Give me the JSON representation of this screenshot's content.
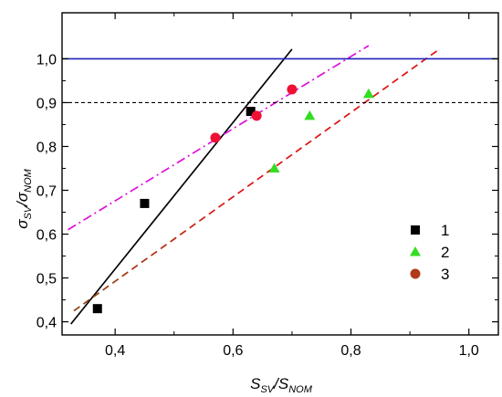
{
  "chart_data": {
    "type": "scatter",
    "xlim": [
      0.31,
      1.05
    ],
    "ylim": [
      0.37,
      1.105
    ],
    "x_ticks": [
      0.4,
      0.6,
      0.8,
      1.0
    ],
    "x_tick_labels": [
      "0,4",
      "0,6",
      "0,8",
      "1,0"
    ],
    "y_ticks": [
      0.4,
      0.5,
      0.6,
      0.7,
      0.8,
      0.9,
      1.0
    ],
    "y_tick_labels": [
      "0,4",
      "0,5",
      "0,6",
      "0,7",
      "0,8",
      "0,9",
      "1,0"
    ],
    "xlabel": {
      "main": "S",
      "sub1": "SV",
      "slash": "/S",
      "sub2": "NOM"
    },
    "ylabel": {
      "main": "σ",
      "sub1": "SV",
      "slash": "/σ",
      "sub2": "NOM"
    },
    "grid": false,
    "legend_position": "bottom-right",
    "series": [
      {
        "name": "1",
        "marker": "square",
        "color": "#000000",
        "points": [
          [
            0.37,
            0.43
          ],
          [
            0.45,
            0.67
          ],
          [
            0.63,
            0.88
          ]
        ],
        "fit": {
          "x": [
            0.325,
            0.7
          ],
          "y": [
            0.395,
            1.022
          ],
          "color": "#000000",
          "dash": "none"
        }
      },
      {
        "name": "2",
        "marker": "triangle",
        "color": "#33dd22",
        "points": [
          [
            0.67,
            0.75
          ],
          [
            0.73,
            0.87
          ],
          [
            0.83,
            0.92
          ]
        ],
        "fit": {
          "x": [
            0.33,
            0.95
          ],
          "y": [
            0.425,
            1.022
          ],
          "color": "#dd1111",
          "dash": "8,5"
        }
      },
      {
        "name": "3",
        "marker": "circle",
        "color": "#ee1133",
        "points": [
          [
            0.57,
            0.82
          ],
          [
            0.64,
            0.87
          ],
          [
            0.7,
            0.93
          ]
        ],
        "fit": {
          "x": [
            0.32,
            0.83
          ],
          "y": [
            0.61,
            1.03
          ],
          "color": "#dd11dd",
          "dash": "10,4,2,4"
        }
      }
    ],
    "reference_lines": [
      {
        "y": 1.0,
        "color": "#2222bb",
        "dash": "none"
      },
      {
        "y": 0.9,
        "color": "#000000",
        "dash": "4,3"
      }
    ]
  }
}
